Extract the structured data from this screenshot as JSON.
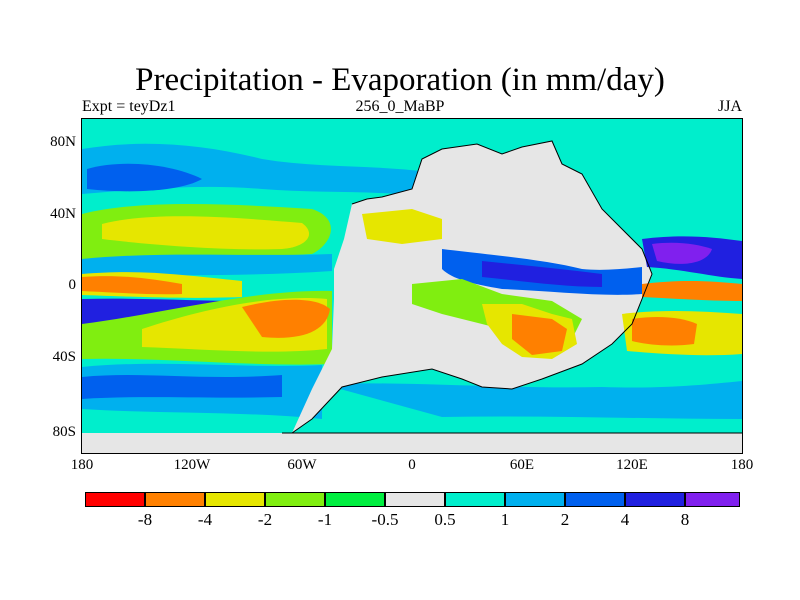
{
  "title": "Precipitation - Evaporation (in mm/day)",
  "subtitle_left": "Expt = teyDz1",
  "subtitle_center": "256_0_MaBP",
  "subtitle_right": "JJA",
  "y_axis_labels": [
    "80N",
    "40N",
    "0",
    "40S",
    "80S"
  ],
  "x_axis_labels": [
    "180",
    "120W",
    "60W",
    "0",
    "60E",
    "120E",
    "180"
  ],
  "colorbar": {
    "colors": [
      "#ff0000",
      "#ff8000",
      "#e6e600",
      "#80ee10",
      "#00ee40",
      "#e6e6e6",
      "#00eecc",
      "#00b0ee",
      "#0060ee",
      "#2020e0",
      "#8020ee"
    ],
    "labels": [
      "-8",
      "-4",
      "-2",
      "-1",
      "-0.5",
      "0.5",
      "1",
      "2",
      "4",
      "8"
    ]
  },
  "icons": [
    "map-icon"
  ]
}
